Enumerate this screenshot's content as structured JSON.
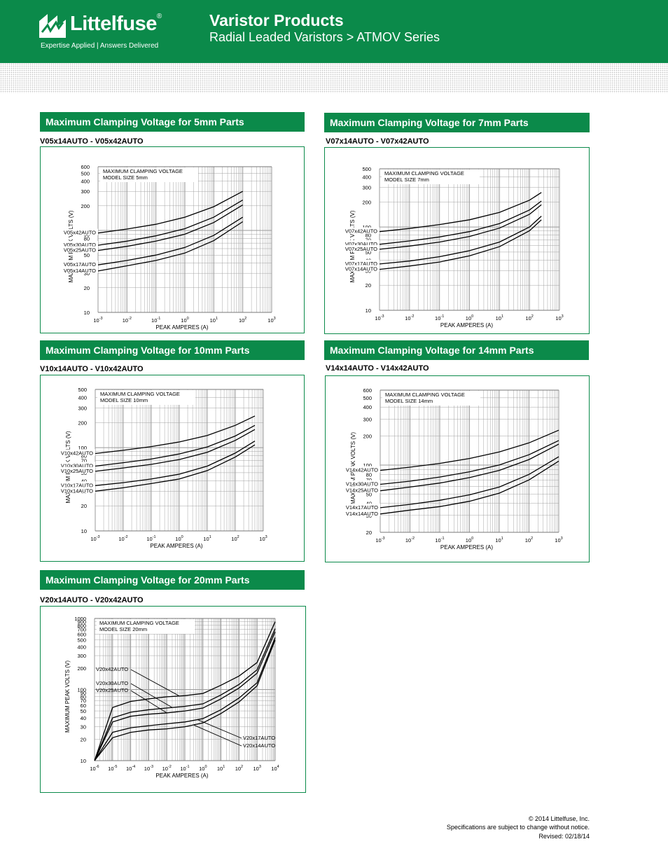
{
  "header": {
    "brand": "Littelfuse",
    "trademark": "®",
    "tagline": "Expertise Applied  |  Answers Delivered",
    "title": "Varistor Products",
    "subtitle": "Radial Leaded Varistors  >  ATMOV Series",
    "colors": {
      "brand_green": "#0b8a4a"
    }
  },
  "sections": [
    {
      "heading": "Maximum Clamping Voltage for 5mm Parts",
      "part_range": "V05x14AUTO - V05x42AUTO"
    },
    {
      "heading": "Maximum Clamping Voltage for 7mm Parts",
      "part_range": "V07x14AUTO - V07x42AUTO"
    },
    {
      "heading": "Maximum Clamping Voltage for 10mm Parts",
      "part_range": "V10x14AUTO - V10x42AUTO"
    },
    {
      "heading": "Maximum Clamping Voltage for 14mm Parts",
      "part_range": "V14x14AUTO - V14x42AUTO"
    },
    {
      "heading": "Maximum Clamping Voltage for 20mm Parts",
      "part_range": "V20x14AUTO - V20x42AUTO"
    }
  ],
  "chart_data": [
    {
      "type": "line",
      "title": "MAXIMUM CLAMPING VOLTAGE",
      "subtitle": "MODEL SIZE 5mm",
      "xlabel": "PEAK AMPERES (A)",
      "ylabel": "MAXIMUM PEAK VOLTS (V)",
      "x_scale": "log",
      "y_scale": "log",
      "xlim": [
        0.001,
        1000
      ],
      "ylim": [
        10,
        600
      ],
      "x_ticks": [
        -3,
        -2,
        -1,
        0,
        1,
        2,
        3
      ],
      "y_ticks": [
        "600",
        "500",
        "400",
        "300",
        "200",
        "100",
        "90",
        "80",
        "70",
        "60",
        "50",
        "40",
        "30",
        "20",
        "10"
      ],
      "grid": true,
      "series": [
        {
          "name": "V05x42AUTO",
          "x": [
            0.001,
            0.01,
            0.1,
            1,
            10,
            100
          ],
          "y": [
            93,
            104,
            119,
            145,
            195,
            300
          ]
        },
        {
          "name": "V05x30AUTO",
          "x": [
            0.001,
            0.01,
            0.1,
            1,
            10,
            100
          ],
          "y": [
            66,
            74,
            86,
            105,
            145,
            235
          ]
        },
        {
          "name": "V05x25AUTO",
          "x": [
            0.001,
            0.01,
            0.1,
            1,
            10,
            100
          ],
          "y": [
            57,
            64,
            74,
            90,
            125,
            205
          ]
        },
        {
          "name": "V05x17AUTO",
          "x": [
            0.001,
            0.01,
            0.1,
            1,
            10,
            100
          ],
          "y": [
            38,
            43,
            50,
            62,
            87,
            145
          ]
        },
        {
          "name": "V05x14AUTO",
          "x": [
            0.001,
            0.01,
            0.1,
            1,
            10,
            100
          ],
          "y": [
            32,
            37,
            43,
            53,
            75,
            128
          ]
        }
      ]
    },
    {
      "type": "line",
      "title": "MAXIMUM CLAMPING VOLTAGE",
      "subtitle": "MODEL SIZE 7mm",
      "xlabel": "PEAK AMPERES (A)",
      "ylabel": "MAXIMUM PEAK VOLTS (V)",
      "x_scale": "log",
      "y_scale": "log",
      "xlim": [
        0.001,
        1000
      ],
      "ylim": [
        10,
        500
      ],
      "x_ticks": [
        -3,
        -2,
        -1,
        0,
        1,
        2,
        3
      ],
      "y_ticks": [
        "500",
        "400",
        "300",
        "200",
        "100",
        "90",
        "80",
        "70",
        "60",
        "50",
        "40",
        "30",
        "20",
        "10"
      ],
      "grid": true,
      "series": [
        {
          "name": "V07x42AUTO",
          "x": [
            0.001,
            0.01,
            0.1,
            1,
            10,
            100,
            250
          ],
          "y": [
            88,
            96,
            107,
            122,
            150,
            210,
            260
          ]
        },
        {
          "name": "V07x30AUTO",
          "x": [
            0.001,
            0.01,
            0.1,
            1,
            10,
            100,
            250
          ],
          "y": [
            62,
            68,
            76,
            88,
            110,
            160,
            205
          ]
        },
        {
          "name": "V07x25AUTO",
          "x": [
            0.001,
            0.01,
            0.1,
            1,
            10,
            100,
            250
          ],
          "y": [
            54,
            59,
            66,
            77,
            97,
            142,
            185
          ]
        },
        {
          "name": "V07x17AUTO",
          "x": [
            0.001,
            0.01,
            0.1,
            1,
            10,
            100,
            250
          ],
          "y": [
            36,
            39,
            44,
            52,
            66,
            100,
            135
          ]
        },
        {
          "name": "V07x14AUTO",
          "x": [
            0.001,
            0.01,
            0.1,
            1,
            10,
            100,
            250
          ],
          "y": [
            31,
            34,
            38,
            45,
            58,
            90,
            122
          ]
        }
      ]
    },
    {
      "type": "line",
      "title": "MAXIMUM CLAMPING VOLTAGE",
      "subtitle": "MODEL SIZE 10mm",
      "xlabel": "PEAK AMPERES (A)",
      "ylabel": "MAXIMUM PEAK VOLTS (V)",
      "x_scale": "log",
      "y_scale": "log",
      "xlim": [
        0.001,
        1000
      ],
      "ylim": [
        10,
        500
      ],
      "x_ticks": [
        -3,
        -2,
        -1,
        0,
        1,
        2,
        3
      ],
      "y_ticks": [
        "500",
        "400",
        "300",
        "200",
        "100",
        "90",
        "80",
        "70",
        "60",
        "50",
        "40",
        "30",
        "20",
        "10"
      ],
      "grid": true,
      "series": [
        {
          "name": "V10x42AUTO",
          "x": [
            0.001,
            0.01,
            0.1,
            1,
            10,
            100,
            500
          ],
          "y": [
            85,
            93,
            103,
            117,
            140,
            185,
            240
          ]
        },
        {
          "name": "V10x30AUTO",
          "x": [
            0.001,
            0.01,
            0.1,
            1,
            10,
            100,
            500
          ],
          "y": [
            60,
            66,
            73,
            84,
            102,
            138,
            185
          ]
        },
        {
          "name": "V10x25AUTO",
          "x": [
            0.001,
            0.01,
            0.1,
            1,
            10,
            100,
            500
          ],
          "y": [
            52,
            57,
            63,
            72,
            88,
            122,
            165
          ]
        },
        {
          "name": "V10x17AUTO",
          "x": [
            0.001,
            0.01,
            0.1,
            1,
            10,
            100,
            500
          ],
          "y": [
            35,
            38,
            42,
            48,
            60,
            86,
            120
          ]
        },
        {
          "name": "V10x14AUTO",
          "x": [
            0.001,
            0.01,
            0.1,
            1,
            10,
            100,
            500
          ],
          "y": [
            30,
            33,
            37,
            42,
            53,
            77,
            108
          ]
        }
      ]
    },
    {
      "type": "line",
      "title": "MAXIMUM CLAMPING VOLTAGE",
      "subtitle": "MODEL SIZE 14mm",
      "xlabel": "PEAK AMPERES (A)",
      "ylabel": "MAXIMUM PEAK VOLTS (V)",
      "x_scale": "log",
      "y_scale": "log",
      "xlim": [
        0.001,
        1000
      ],
      "ylim": [
        20,
        600
      ],
      "x_ticks": [
        -3,
        -2,
        -1,
        0,
        1,
        2,
        3
      ],
      "y_ticks": [
        "600",
        "500",
        "400",
        "300",
        "200",
        "100",
        "90",
        "80",
        "70",
        "60",
        "50",
        "40",
        "30",
        "20"
      ],
      "grid": true,
      "series": [
        {
          "name": "V14x42AUTO",
          "x": [
            0.001,
            0.01,
            0.1,
            1,
            10,
            100,
            1000
          ],
          "y": [
            88,
            95,
            104,
            117,
            137,
            170,
            230
          ]
        },
        {
          "name": "V14x30AUTO",
          "x": [
            0.001,
            0.01,
            0.1,
            1,
            10,
            100,
            1000
          ],
          "y": [
            63,
            68,
            75,
            85,
            100,
            128,
            180
          ]
        },
        {
          "name": "V14x25AUTO",
          "x": [
            0.001,
            0.01,
            0.1,
            1,
            10,
            100,
            1000
          ],
          "y": [
            54,
            59,
            65,
            74,
            88,
            114,
            165
          ]
        },
        {
          "name": "V14x17AUTO",
          "x": [
            0.001,
            0.01,
            0.1,
            1,
            10,
            100,
            1000
          ],
          "y": [
            36,
            39,
            43,
            49,
            59,
            80,
            122
          ]
        },
        {
          "name": "V14x14AUTO",
          "x": [
            0.001,
            0.01,
            0.1,
            1,
            10,
            100,
            1000
          ],
          "y": [
            31,
            34,
            37,
            42,
            51,
            70,
            110
          ]
        }
      ]
    },
    {
      "type": "line",
      "title": "MAXIMUM CLAMPING VOLTAGE",
      "subtitle": "MODEL SIZE 20mm",
      "xlabel": "PEAK AMPERES (A)",
      "ylabel": "MAXIMUM PEAK VOLTS (V)",
      "x_scale": "log",
      "y_scale": "log",
      "xlim": [
        1e-06,
        10000
      ],
      "ylim": [
        10,
        1000
      ],
      "x_ticks": [
        -6,
        -5,
        -4,
        -3,
        -2,
        -1,
        0,
        1,
        2,
        3,
        4
      ],
      "y_ticks": [
        "1000",
        "900",
        "800",
        "700",
        "600",
        "500",
        "400",
        "300",
        "200",
        "100",
        "90",
        "80",
        "70",
        "60",
        "50",
        "40",
        "30",
        "20",
        "10"
      ],
      "grid": true,
      "series": [
        {
          "name": "V20x42AUTO",
          "x": [
            1e-06,
            1e-05,
            0.0001,
            0.001,
            0.01,
            0.1,
            1,
            10,
            100,
            1000,
            10000
          ],
          "y": [
            10,
            56,
            68,
            74,
            79,
            82,
            88,
            115,
            155,
            240,
            900
          ]
        },
        {
          "name": "V20x30AUTO",
          "x": [
            1e-06,
            1e-05,
            0.0001,
            0.001,
            0.01,
            0.1,
            1,
            10,
            100,
            1000,
            10000
          ],
          "y": [
            10,
            40,
            48,
            52,
            55,
            58,
            63,
            84,
            118,
            190,
            720
          ]
        },
        {
          "name": "V20x25AUTO",
          "x": [
            1e-06,
            1e-05,
            0.0001,
            0.001,
            0.01,
            0.1,
            1,
            10,
            100,
            1000,
            10000
          ],
          "y": [
            10,
            35,
            42,
            45,
            47,
            50,
            55,
            74,
            105,
            170,
            650
          ]
        },
        {
          "name": "V20x17AUTO",
          "x": [
            1e-06,
            1e-05,
            0.0001,
            0.001,
            0.01,
            0.1,
            1,
            10,
            100,
            1000,
            10000
          ],
          "y": [
            10,
            25,
            29,
            31,
            33,
            35,
            39,
            52,
            76,
            125,
            540
          ]
        },
        {
          "name": "V20x14AUTO",
          "x": [
            1e-06,
            1e-05,
            0.0001,
            0.001,
            0.01,
            0.1,
            1,
            10,
            100,
            1000,
            10000
          ],
          "y": [
            10,
            21,
            25,
            27,
            28,
            30,
            34,
            46,
            67,
            113,
            500
          ]
        }
      ]
    }
  ],
  "footer": {
    "copyright": "© 2014 Littelfuse, Inc.",
    "disclaimer": "Specifications are subject to change without notice.",
    "revised": "Revised: 02/18/14"
  }
}
